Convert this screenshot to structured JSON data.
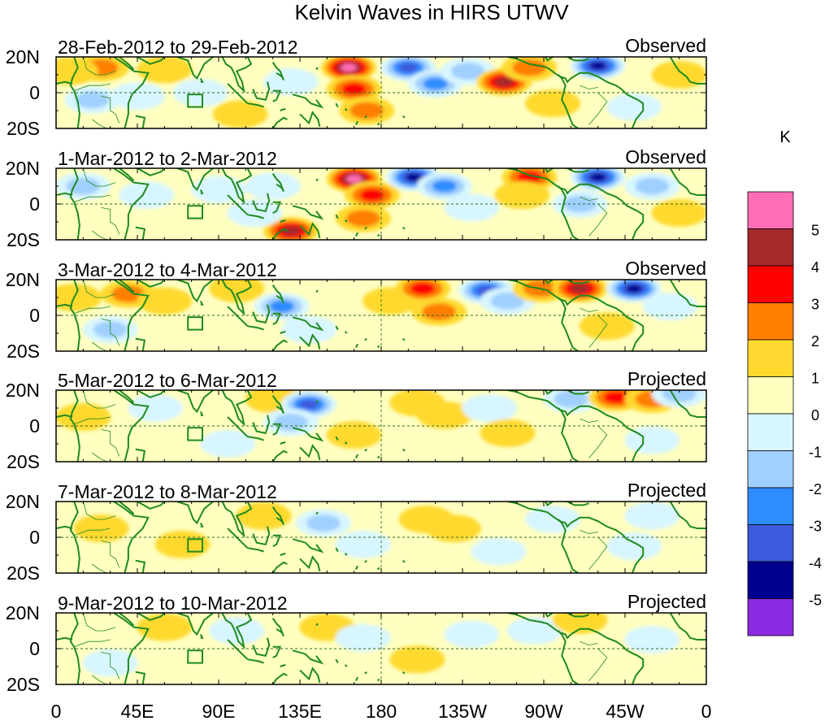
{
  "figure": {
    "title": "Kelvin Waves in HIRS UTWV",
    "colorbar_unit": "K"
  },
  "panels": [
    {
      "date_range": "28-Feb-2012 to 29-Feb-2012",
      "status": "Observed"
    },
    {
      "date_range": "1-Mar-2012 to 2-Mar-2012",
      "status": "Observed"
    },
    {
      "date_range": "3-Mar-2012 to 4-Mar-2012",
      "status": "Observed"
    },
    {
      "date_range": "5-Mar-2012 to 6-Mar-2012",
      "status": "Projected"
    },
    {
      "date_range": "7-Mar-2012 to 8-Mar-2012",
      "status": "Projected"
    },
    {
      "date_range": "9-Mar-2012 to 10-Mar-2012",
      "status": "Projected"
    }
  ],
  "lat_labels": [
    "20N",
    "0",
    "20S"
  ],
  "lon_labels": [
    "0",
    "45E",
    "90E",
    "135E",
    "180",
    "135W",
    "90W",
    "45W",
    "0"
  ],
  "colorbar": {
    "labels": [
      "5",
      "4",
      "3",
      "2",
      "1",
      "0",
      "-1",
      "-2",
      "-3",
      "-4",
      "-5"
    ],
    "colors": [
      "#ff6eb4",
      "#a52a2a",
      "#ff0000",
      "#ff7f00",
      "#ffd92f",
      "#ffffc0",
      "#d8f6ff",
      "#a0d0ff",
      "#2e8cff",
      "#3c5adc",
      "#000090",
      "#8a2be2"
    ]
  },
  "palette": {
    "coast": "#1f8a1f",
    "equator_line": "#2a6a2a"
  },
  "anomaly_blobs": [
    [
      {
        "lon": 25,
        "lat": 14,
        "v": 2
      },
      {
        "lon": 8,
        "lat": 12,
        "v": 1
      },
      {
        "lon": 60,
        "lat": 13,
        "v": 1
      },
      {
        "lon": 80,
        "lat": 0,
        "v": -1
      },
      {
        "lon": 45,
        "lat": -2,
        "v": -1
      },
      {
        "lon": 20,
        "lat": -4,
        "v": -2
      },
      {
        "lon": 102,
        "lat": -12,
        "v": 1
      },
      {
        "lon": 130,
        "lat": 6,
        "v": -1
      },
      {
        "lon": 162,
        "lat": 14,
        "v": 5
      },
      {
        "lon": 165,
        "lat": 2,
        "v": 3
      },
      {
        "lon": 172,
        "lat": -10,
        "v": 2
      },
      {
        "lon": 195,
        "lat": 14,
        "v": -4
      },
      {
        "lon": 210,
        "lat": 5,
        "v": -3
      },
      {
        "lon": 228,
        "lat": 12,
        "v": -2
      },
      {
        "lon": 248,
        "lat": 6,
        "v": 4
      },
      {
        "lon": 262,
        "lat": 14,
        "v": 2
      },
      {
        "lon": 300,
        "lat": 15,
        "v": -5
      },
      {
        "lon": 275,
        "lat": -6,
        "v": 1
      },
      {
        "lon": 320,
        "lat": -8,
        "v": -1
      },
      {
        "lon": 345,
        "lat": 10,
        "v": 1
      }
    ],
    [
      {
        "lon": 15,
        "lat": 10,
        "v": -2
      },
      {
        "lon": 50,
        "lat": 5,
        "v": -1
      },
      {
        "lon": 90,
        "lat": 8,
        "v": -1
      },
      {
        "lon": 120,
        "lat": 10,
        "v": -1
      },
      {
        "lon": 130,
        "lat": -15,
        "v": 4
      },
      {
        "lon": 110,
        "lat": -5,
        "v": -1
      },
      {
        "lon": 165,
        "lat": 14,
        "v": 5
      },
      {
        "lon": 175,
        "lat": 5,
        "v": 3
      },
      {
        "lon": 170,
        "lat": -8,
        "v": 2
      },
      {
        "lon": 198,
        "lat": 15,
        "v": -5
      },
      {
        "lon": 215,
        "lat": 10,
        "v": -3
      },
      {
        "lon": 230,
        "lat": -2,
        "v": -1
      },
      {
        "lon": 262,
        "lat": 15,
        "v": 3
      },
      {
        "lon": 258,
        "lat": 5,
        "v": 1
      },
      {
        "lon": 300,
        "lat": 15,
        "v": -5
      },
      {
        "lon": 290,
        "lat": 0,
        "v": -2
      },
      {
        "lon": 330,
        "lat": 10,
        "v": -2
      },
      {
        "lon": 345,
        "lat": -5,
        "v": 1
      }
    ],
    [
      {
        "lon": 10,
        "lat": 10,
        "v": 1
      },
      {
        "lon": 40,
        "lat": 12,
        "v": 2
      },
      {
        "lon": 60,
        "lat": 8,
        "v": 1
      },
      {
        "lon": 30,
        "lat": -8,
        "v": -2
      },
      {
        "lon": 100,
        "lat": 15,
        "v": 1
      },
      {
        "lon": 125,
        "lat": 5,
        "v": -3
      },
      {
        "lon": 140,
        "lat": -8,
        "v": -1
      },
      {
        "lon": 185,
        "lat": 8,
        "v": 1
      },
      {
        "lon": 203,
        "lat": 15,
        "v": 3
      },
      {
        "lon": 212,
        "lat": 2,
        "v": 2
      },
      {
        "lon": 238,
        "lat": 14,
        "v": -4
      },
      {
        "lon": 250,
        "lat": 8,
        "v": -2
      },
      {
        "lon": 268,
        "lat": 15,
        "v": 2
      },
      {
        "lon": 290,
        "lat": 15,
        "v": 4
      },
      {
        "lon": 320,
        "lat": 15,
        "v": -5
      },
      {
        "lon": 305,
        "lat": -6,
        "v": 1
      },
      {
        "lon": 340,
        "lat": 5,
        "v": -1
      }
    ],
    [
      {
        "lon": 15,
        "lat": 5,
        "v": 1
      },
      {
        "lon": 55,
        "lat": 10,
        "v": -1
      },
      {
        "lon": 95,
        "lat": -10,
        "v": -1
      },
      {
        "lon": 120,
        "lat": 15,
        "v": 1
      },
      {
        "lon": 140,
        "lat": 12,
        "v": -4
      },
      {
        "lon": 130,
        "lat": 2,
        "v": -2
      },
      {
        "lon": 165,
        "lat": -5,
        "v": 1
      },
      {
        "lon": 200,
        "lat": 13,
        "v": 1
      },
      {
        "lon": 215,
        "lat": 6,
        "v": 1
      },
      {
        "lon": 240,
        "lat": 10,
        "v": -1
      },
      {
        "lon": 250,
        "lat": -4,
        "v": 1
      },
      {
        "lon": 285,
        "lat": 15,
        "v": -2
      },
      {
        "lon": 310,
        "lat": 16,
        "v": 3
      },
      {
        "lon": 330,
        "lat": 15,
        "v": 2
      },
      {
        "lon": 345,
        "lat": 18,
        "v": -2
      },
      {
        "lon": 330,
        "lat": -8,
        "v": -1
      }
    ],
    [
      {
        "lon": 25,
        "lat": 5,
        "v": 1
      },
      {
        "lon": 70,
        "lat": -4,
        "v": 1
      },
      {
        "lon": 115,
        "lat": 12,
        "v": 1
      },
      {
        "lon": 148,
        "lat": 8,
        "v": -2
      },
      {
        "lon": 170,
        "lat": -4,
        "v": -1
      },
      {
        "lon": 205,
        "lat": 10,
        "v": 1
      },
      {
        "lon": 220,
        "lat": 5,
        "v": 1
      },
      {
        "lon": 245,
        "lat": -8,
        "v": -1
      },
      {
        "lon": 275,
        "lat": 10,
        "v": -1
      },
      {
        "lon": 320,
        "lat": -5,
        "v": -1
      },
      {
        "lon": 330,
        "lat": 12,
        "v": -1
      }
    ],
    [
      {
        "lon": 30,
        "lat": -8,
        "v": -1
      },
      {
        "lon": 60,
        "lat": 12,
        "v": 1
      },
      {
        "lon": 100,
        "lat": 10,
        "v": -1
      },
      {
        "lon": 150,
        "lat": 12,
        "v": 1
      },
      {
        "lon": 170,
        "lat": 6,
        "v": -1
      },
      {
        "lon": 200,
        "lat": -6,
        "v": 1
      },
      {
        "lon": 230,
        "lat": 8,
        "v": -1
      },
      {
        "lon": 265,
        "lat": 10,
        "v": -1
      },
      {
        "lon": 290,
        "lat": 16,
        "v": 1
      },
      {
        "lon": 330,
        "lat": 5,
        "v": -1
      }
    ]
  ]
}
